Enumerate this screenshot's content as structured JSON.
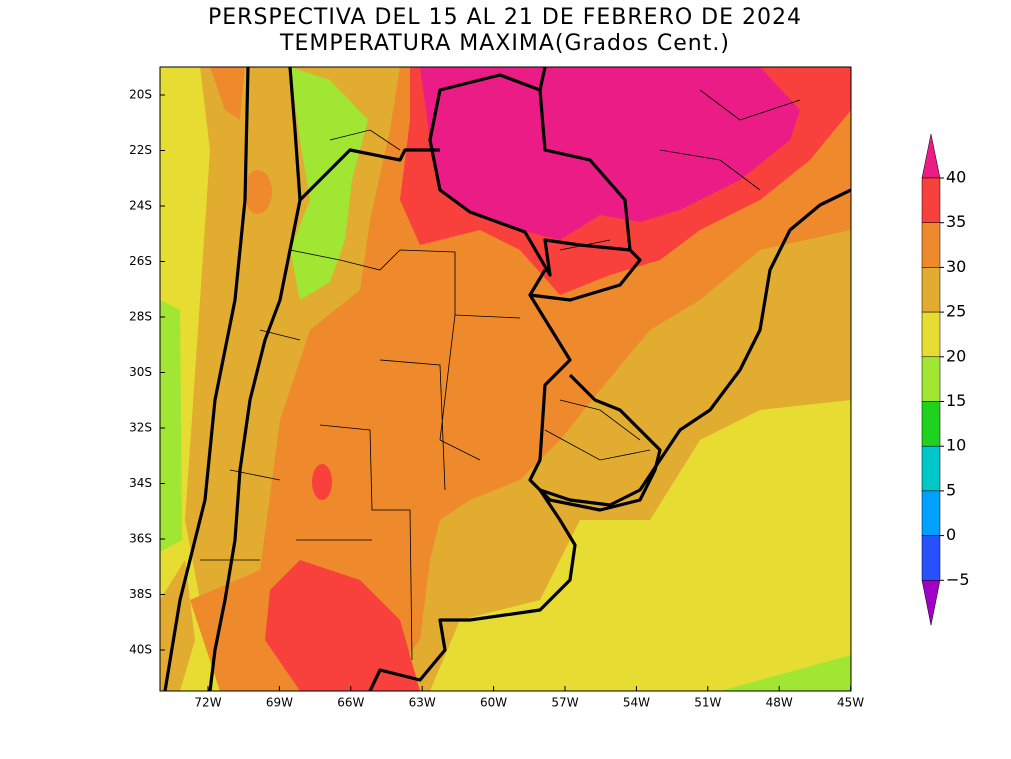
{
  "header": {
    "title_line1": "PERSPECTIVA DEL 15 AL 21 DE FEBRERO DE 2024",
    "title_line2": "TEMPERATURA MAXIMA(Grados Cent.)"
  },
  "map": {
    "lat_labels": [
      "20S",
      "22S",
      "24S",
      "26S",
      "28S",
      "30S",
      "32S",
      "34S",
      "36S",
      "38S",
      "40S"
    ],
    "lon_labels": [
      "72W",
      "69W",
      "66W",
      "63W",
      "60W",
      "57W",
      "54W",
      "51W",
      "48W",
      "45W"
    ]
  },
  "colorbar": {
    "ticks": [
      40,
      35,
      30,
      25,
      20,
      15,
      10,
      5,
      0,
      {
        "value": -5,
        "label": "−5"
      }
    ],
    "colors": [
      "#ec1c86",
      "#f8403c",
      "#ee8a2c",
      "#e2ac30",
      "#e6dc32",
      "#a0e632",
      "#1ed21e",
      "#00c8c8",
      "#00a0ff",
      "#2850ff",
      "#a000c8"
    ]
  }
}
